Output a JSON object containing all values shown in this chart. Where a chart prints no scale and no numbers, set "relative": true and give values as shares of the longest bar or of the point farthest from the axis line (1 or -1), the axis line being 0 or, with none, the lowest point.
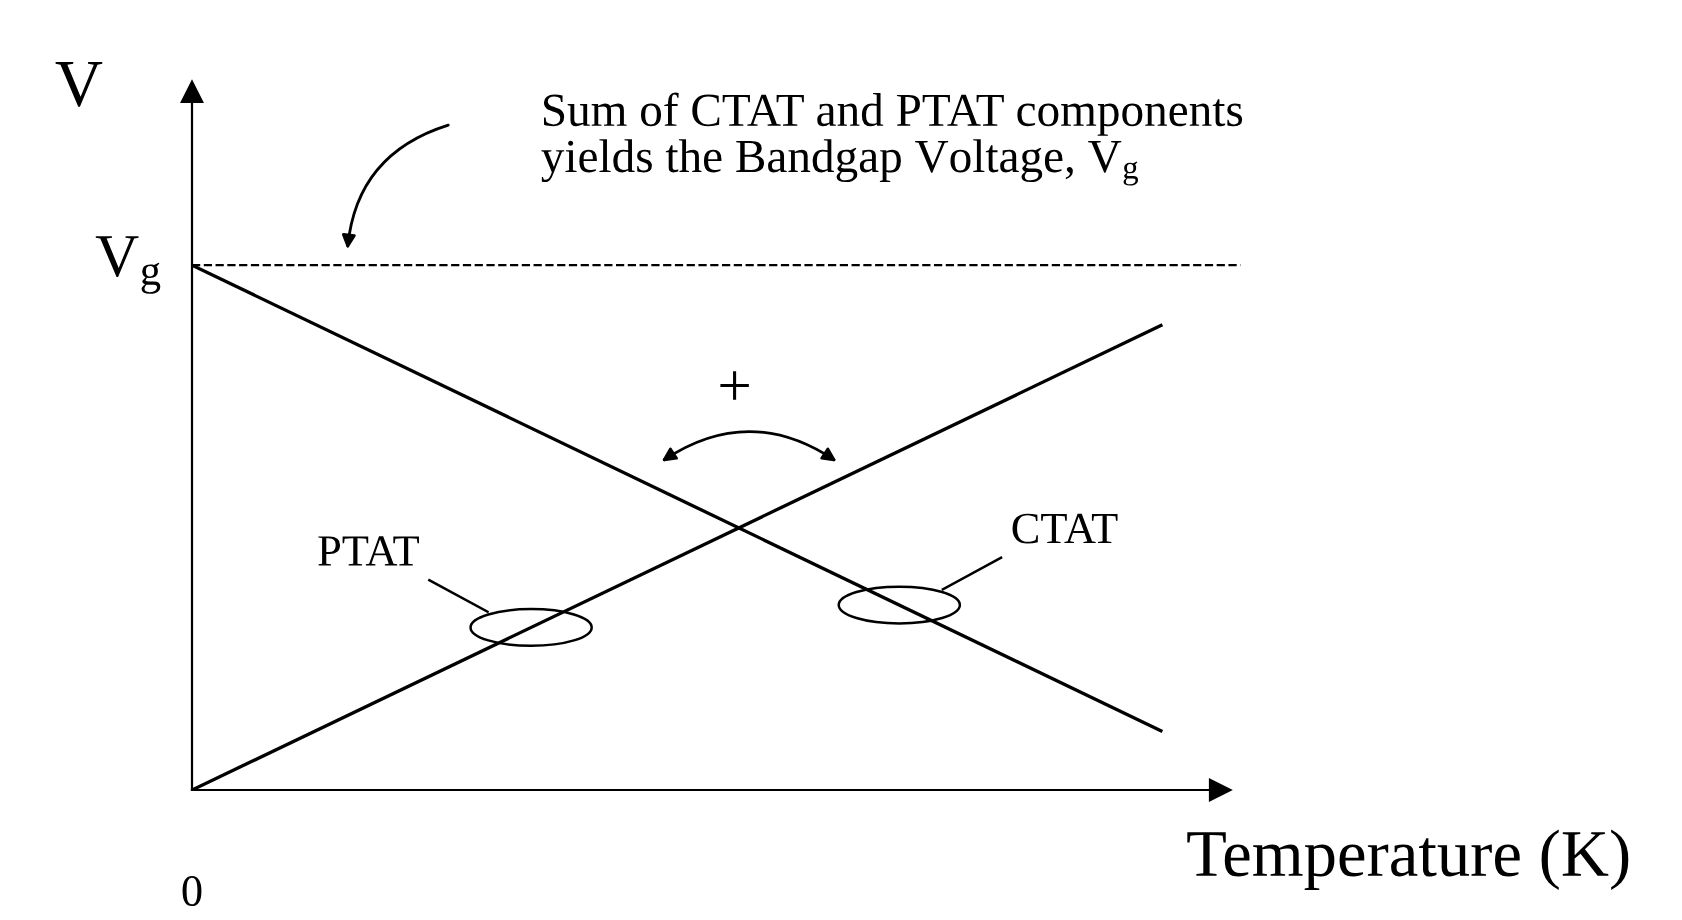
{
  "chart_data": {
    "type": "line",
    "relative": true,
    "categories": [
      null,
      null
    ],
    "xlabel": "Temperature (K)",
    "ylabel": "V",
    "series": [
      {
        "name": "PTAT",
        "color": "#000000",
        "values": [
          0,
          0.885
        ]
      },
      {
        "name": "CTAT",
        "color": "#000000",
        "values": [
          1,
          0.113
        ]
      }
    ],
    "ref_lines": [
      {
        "axis": "y",
        "value": 1,
        "label": "V$_{g}$",
        "color": "#000000",
        "line_style": "dashed"
      }
    ],
    "annotations": [
      "Sum of CTAT and PTAT components yields the Bandgap Voltage, V$_{g}$",
      "+",
      "0"
    ],
    "marker": "none",
    "line_style": "solid",
    "grid": false,
    "legend": false
  }
}
